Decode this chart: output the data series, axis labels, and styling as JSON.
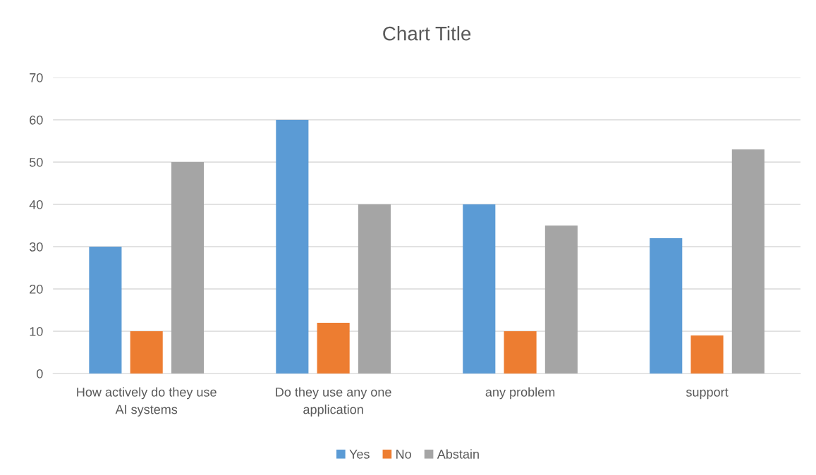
{
  "chart_data": {
    "type": "bar",
    "title": "Chart Title",
    "categories": [
      "How actively do they use\nAI systems",
      "Do they use any one\napplication",
      "any problem",
      "support"
    ],
    "series": [
      {
        "name": "Yes",
        "color": "#5b9bd5",
        "values": [
          30,
          60,
          40,
          32
        ]
      },
      {
        "name": "No",
        "color": "#ed7d31",
        "values": [
          10,
          12,
          10,
          9
        ]
      },
      {
        "name": "Abstain",
        "color": "#a5a5a5",
        "values": [
          50,
          40,
          35,
          53
        ]
      }
    ],
    "ylim": [
      0,
      70
    ],
    "yticks": [
      0,
      10,
      20,
      30,
      40,
      50,
      60,
      70
    ],
    "grid": "y",
    "legend": "bottom"
  }
}
